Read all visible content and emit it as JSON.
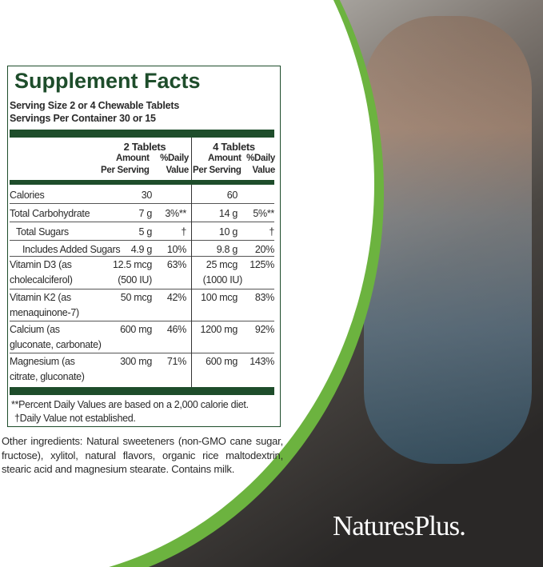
{
  "brand": {
    "logo_text": "NaturesPlus.",
    "accent_green": "#6cb33f",
    "label_green": "#1e4d2b"
  },
  "facts": {
    "title": "Supplement Facts",
    "serving_size": "Serving Size 2 or 4 Chewable Tablets",
    "servings_per_container": "Servings Per Container 30 or 15",
    "col_2": {
      "title": "2 Tablets",
      "amount": "Amount",
      "per_serving": "Per Serving",
      "dv": "%Daily",
      "value": "Value"
    },
    "col_4": {
      "title": "4 Tablets",
      "amount": "Amount",
      "per_serving": "Per Serving",
      "dv": "%Daily",
      "value": "Value"
    },
    "rows": [
      {
        "name": "Calories",
        "a2": "30",
        "d2": "",
        "a4": "60",
        "d4": ""
      },
      {
        "name": "Total Carbohydrate",
        "a2": "7 g",
        "d2": "3%**",
        "a4": "14 g",
        "d4": "5%**"
      },
      {
        "name": "Total Sugars",
        "a2": "5 g",
        "d2": "†",
        "a4": "10 g",
        "d4": "†"
      },
      {
        "name": "Includes Added Sugars",
        "a2": "4.9 g",
        "d2": "10%",
        "a4": "9.8 g",
        "d4": "20%"
      },
      {
        "name": "Vitamin D3 (as",
        "name2": "cholecalciferol)",
        "a2": "12.5 mcg",
        "a2b": "(500 IU)",
        "d2": "63%",
        "a4": "25 mcg",
        "a4b": "(1000 IU)",
        "d4": "125%"
      },
      {
        "name": "Vitamin K2 (as",
        "name2": "menaquinone-7)",
        "a2": "50 mcg",
        "d2": "42%",
        "a4": "100 mcg",
        "d4": "83%"
      },
      {
        "name": "Calcium (as",
        "name2": "gluconate, carbonate)",
        "a2": "600 mg",
        "d2": "46%",
        "a4": "1200 mg",
        "d4": "92%"
      },
      {
        "name": "Magnesium (as",
        "name2": "citrate, gluconate)",
        "a2": "300 mg",
        "d2": "71%",
        "a4": "600 mg",
        "d4": "143%"
      }
    ],
    "footnote_1": "**Percent Daily Values are based on a 2,000 calorie diet.",
    "footnote_2": "†Daily Value not established."
  },
  "other_ingredients": "Other ingredients: Natural sweeteners (non-GMO cane sugar, fructose), xylitol, natural flavors, organic rice maltodextrin, stearic acid and magnesium stearate. Contains milk."
}
